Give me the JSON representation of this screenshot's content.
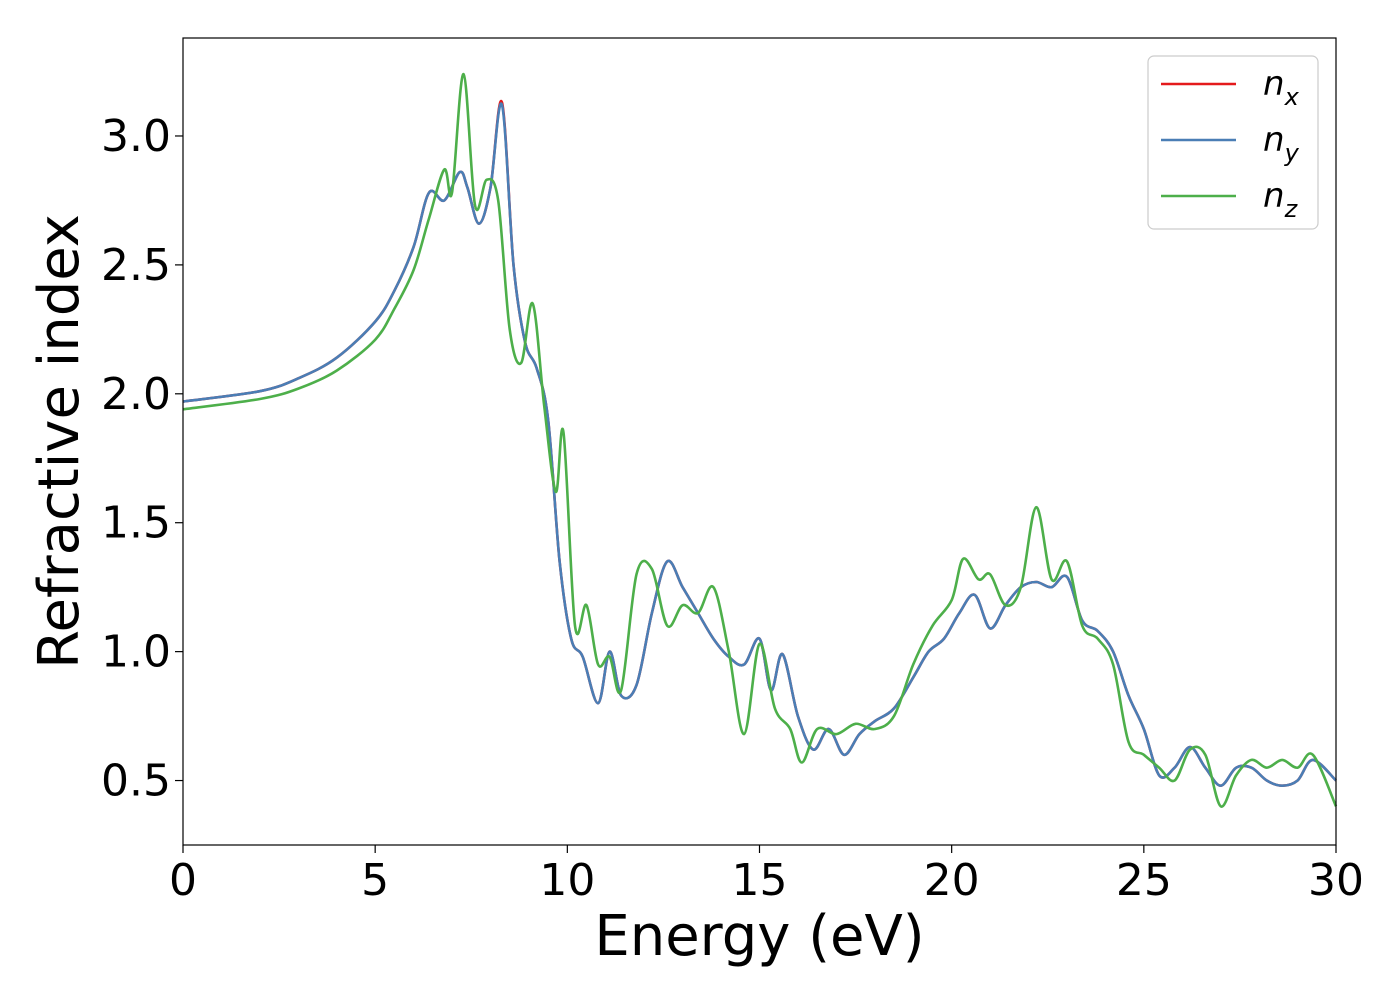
{
  "chart_data": {
    "type": "line",
    "xlabel": "Energy (eV)",
    "ylabel": "Refractive index",
    "xlim": [
      0,
      30
    ],
    "ylim": [
      0.25,
      3.38
    ],
    "xticks": [
      0,
      5,
      10,
      15,
      20,
      25,
      30
    ],
    "xtick_labels": [
      "0",
      "5",
      "10",
      "15",
      "20",
      "25",
      "30"
    ],
    "yticks": [
      0.5,
      1.0,
      1.5,
      2.0,
      2.5,
      3.0
    ],
    "ytick_labels": [
      "0.5",
      "1.0",
      "1.5",
      "2.0",
      "2.5",
      "3.0"
    ],
    "grid": false,
    "legend_position": "top-right",
    "series": [
      {
        "key": "nx",
        "name": "n_x",
        "legend_base": "n",
        "legend_sub": "x",
        "color": "#e41a1c",
        "x": [
          0,
          2,
          3,
          4,
          5,
          5.5,
          6,
          6.4,
          6.8,
          7.2,
          7.4,
          7.7,
          8.0,
          8.3,
          8.6,
          8.9,
          9.2,
          9.5,
          9.8,
          10.1,
          10.4,
          10.8,
          11.1,
          11.4,
          11.8,
          12.2,
          12.6,
          13.0,
          13.4,
          13.8,
          14.2,
          14.6,
          15.0,
          15.3,
          15.6,
          16.0,
          16.4,
          16.8,
          17.2,
          17.6,
          18.0,
          18.5,
          19.0,
          19.4,
          19.8,
          20.2,
          20.6,
          21.0,
          21.4,
          21.8,
          22.2,
          22.6,
          23.0,
          23.4,
          23.8,
          24.2,
          24.6,
          25.0,
          25.4,
          25.8,
          26.2,
          26.6,
          27.0,
          27.4,
          27.8,
          28.2,
          28.6,
          29.0,
          29.4,
          30.0
        ],
        "values": [
          1.97,
          2.01,
          2.06,
          2.14,
          2.28,
          2.4,
          2.57,
          2.78,
          2.75,
          2.86,
          2.8,
          2.66,
          2.8,
          3.13,
          2.5,
          2.2,
          2.1,
          1.9,
          1.35,
          1.05,
          0.98,
          0.8,
          1.0,
          0.83,
          0.87,
          1.15,
          1.35,
          1.25,
          1.15,
          1.05,
          0.98,
          0.95,
          1.05,
          0.85,
          0.99,
          0.75,
          0.62,
          0.7,
          0.6,
          0.68,
          0.73,
          0.78,
          0.9,
          1.0,
          1.05,
          1.15,
          1.22,
          1.09,
          1.18,
          1.25,
          1.27,
          1.25,
          1.29,
          1.12,
          1.08,
          1.0,
          0.83,
          0.7,
          0.52,
          0.55,
          0.63,
          0.55,
          0.48,
          0.55,
          0.55,
          0.5,
          0.48,
          0.5,
          0.58,
          0.5
        ]
      },
      {
        "key": "ny",
        "name": "n_y",
        "legend_base": "n",
        "legend_sub": "y",
        "color": "#4a7eb5",
        "x": [
          0,
          2,
          3,
          4,
          5,
          5.5,
          6,
          6.4,
          6.8,
          7.2,
          7.4,
          7.7,
          8.0,
          8.3,
          8.6,
          8.9,
          9.2,
          9.5,
          9.8,
          10.1,
          10.4,
          10.8,
          11.1,
          11.4,
          11.8,
          12.2,
          12.6,
          13.0,
          13.4,
          13.8,
          14.2,
          14.6,
          15.0,
          15.3,
          15.6,
          16.0,
          16.4,
          16.8,
          17.2,
          17.6,
          18.0,
          18.5,
          19.0,
          19.4,
          19.8,
          20.2,
          20.6,
          21.0,
          21.4,
          21.8,
          22.2,
          22.6,
          23.0,
          23.4,
          23.8,
          24.2,
          24.6,
          25.0,
          25.4,
          25.8,
          26.2,
          26.6,
          27.0,
          27.4,
          27.8,
          28.2,
          28.6,
          29.0,
          29.4,
          30.0
        ],
        "values": [
          1.97,
          2.01,
          2.06,
          2.14,
          2.28,
          2.4,
          2.57,
          2.78,
          2.75,
          2.86,
          2.8,
          2.66,
          2.8,
          3.12,
          2.5,
          2.2,
          2.1,
          1.9,
          1.35,
          1.05,
          0.98,
          0.8,
          1.0,
          0.83,
          0.87,
          1.15,
          1.35,
          1.25,
          1.15,
          1.05,
          0.98,
          0.95,
          1.05,
          0.85,
          0.99,
          0.75,
          0.62,
          0.7,
          0.6,
          0.68,
          0.73,
          0.78,
          0.9,
          1.0,
          1.05,
          1.15,
          1.22,
          1.09,
          1.18,
          1.25,
          1.27,
          1.25,
          1.29,
          1.12,
          1.08,
          1.0,
          0.83,
          0.7,
          0.52,
          0.55,
          0.63,
          0.55,
          0.48,
          0.55,
          0.55,
          0.5,
          0.48,
          0.5,
          0.58,
          0.5
        ]
      },
      {
        "key": "nz",
        "name": "n_z",
        "legend_base": "n",
        "legend_sub": "z",
        "color": "#4daf4a",
        "x": [
          0,
          2,
          3,
          4,
          5,
          5.5,
          6,
          6.4,
          6.8,
          7.0,
          7.3,
          7.6,
          7.9,
          8.2,
          8.5,
          8.8,
          9.1,
          9.4,
          9.7,
          9.9,
          10.2,
          10.5,
          10.8,
          11.1,
          11.4,
          11.8,
          12.2,
          12.6,
          13.0,
          13.4,
          13.8,
          14.2,
          14.6,
          15.0,
          15.4,
          15.8,
          16.1,
          16.5,
          17.0,
          17.5,
          18.0,
          18.5,
          19.0,
          19.5,
          20.0,
          20.3,
          20.7,
          21.0,
          21.4,
          21.8,
          22.2,
          22.6,
          23.0,
          23.4,
          23.8,
          24.2,
          24.6,
          25.0,
          25.4,
          25.8,
          26.2,
          26.6,
          27.0,
          27.4,
          27.8,
          28.2,
          28.6,
          29.0,
          29.4,
          30.0
        ],
        "values": [
          1.94,
          1.98,
          2.02,
          2.09,
          2.21,
          2.33,
          2.48,
          2.68,
          2.87,
          2.78,
          3.24,
          2.73,
          2.83,
          2.75,
          2.25,
          2.12,
          2.35,
          1.95,
          1.62,
          1.85,
          1.1,
          1.18,
          0.95,
          0.98,
          0.85,
          1.3,
          1.32,
          1.1,
          1.18,
          1.15,
          1.25,
          1.0,
          0.68,
          1.03,
          0.78,
          0.7,
          0.57,
          0.7,
          0.68,
          0.72,
          0.7,
          0.75,
          0.95,
          1.1,
          1.2,
          1.36,
          1.28,
          1.3,
          1.18,
          1.25,
          1.56,
          1.28,
          1.35,
          1.1,
          1.05,
          0.95,
          0.65,
          0.6,
          0.55,
          0.5,
          0.62,
          0.6,
          0.4,
          0.52,
          0.58,
          0.55,
          0.58,
          0.55,
          0.6,
          0.4
        ]
      }
    ]
  }
}
